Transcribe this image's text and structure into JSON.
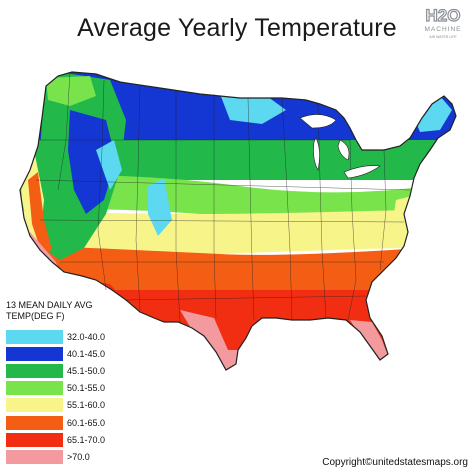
{
  "title": "Average Yearly Temperature",
  "logo": {
    "main": "H2O",
    "sub1": "MACHINE",
    "sub2": "AIR WATER LIFE",
    "icon": "h2o-machine-logo-icon"
  },
  "legend": {
    "title": "13 MEAN DAILY AVG TEMP(DEG F)",
    "items": [
      {
        "label": "32.0-40.0",
        "color": "#5cd8f0"
      },
      {
        "label": "40.1-45.0",
        "color": "#1436d2"
      },
      {
        "label": "45.1-50.0",
        "color": "#22b84a"
      },
      {
        "label": "50.1-55.0",
        "color": "#79e34c"
      },
      {
        "label": "55.1-60.0",
        "color": "#f7f48a"
      },
      {
        "label": "60.1-65.0",
        "color": "#f35e14"
      },
      {
        "label": "65.1-70.0",
        "color": "#f12e12"
      },
      {
        "label": ">70.0",
        "color": "#f29a9e"
      }
    ]
  },
  "copyright": "Copyright©unitedstatesmaps.org"
}
